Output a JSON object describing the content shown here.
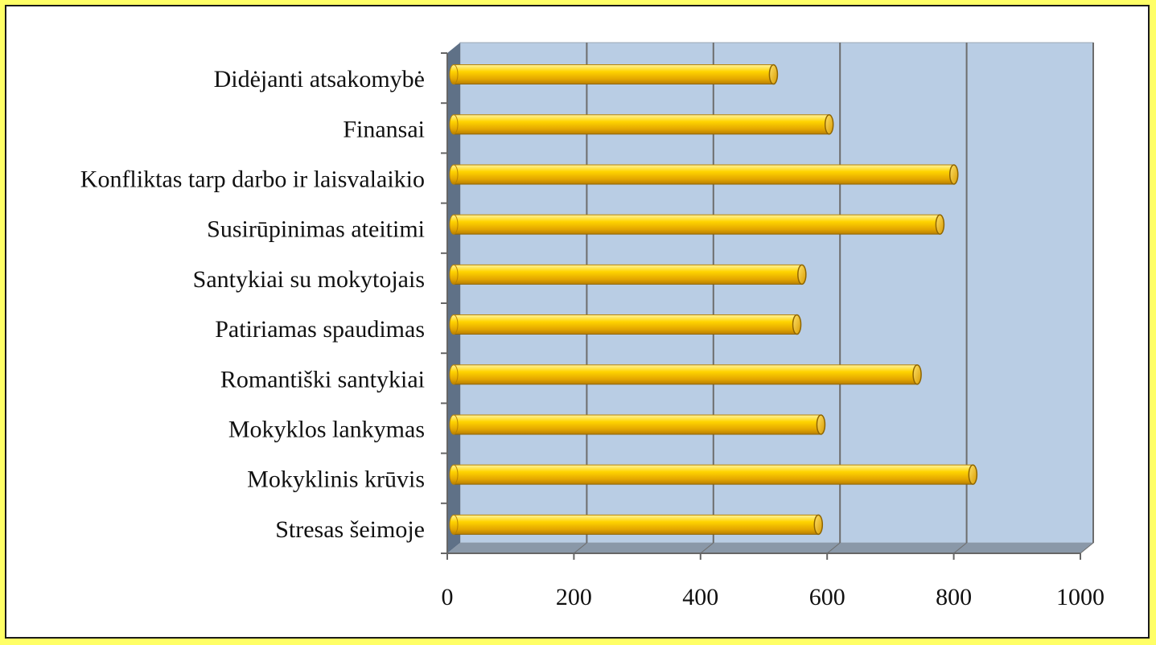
{
  "chart_data": {
    "type": "bar",
    "orientation": "horizontal",
    "style": "3d-cylinder",
    "categories": [
      "Didėjanti atsakomybė",
      "Finansai",
      "Konfliktas tarp darbo ir laisvalaikio",
      "Susirūpinimas ateitimi",
      "Santykiai su mokytojais",
      "Patiriamas spaudimas",
      "Romantiški santykiai",
      "Mokyklos lankymas",
      "Mokyklinis krūvis",
      "Stresas šeimoje"
    ],
    "values": [
      505,
      593,
      790,
      768,
      550,
      542,
      732,
      580,
      820,
      576
    ],
    "xlim": [
      0,
      1000
    ],
    "xticks": [
      "0",
      "200",
      "400",
      "600",
      "800",
      "1000"
    ],
    "grid": true,
    "bar_color": "#f5c400",
    "wall_color": "#b9cde4",
    "floor_color": "#8a98a8"
  }
}
